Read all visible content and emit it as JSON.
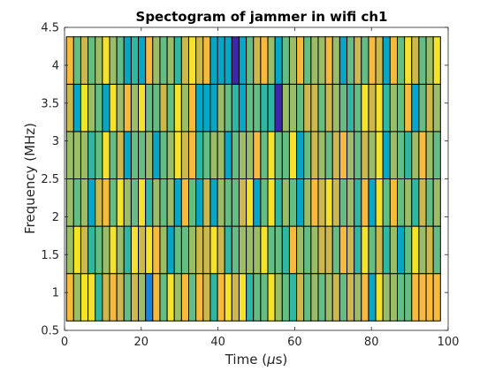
{
  "chart_data": {
    "type": "heatmap",
    "title": "Spectogram of jammer in wifi ch1",
    "xlabel_prefix": "Time (",
    "xlabel_symbol": "μ",
    "xlabel_suffix": "s)",
    "ylabel": "Frequency (MHz)",
    "xlim": [
      0,
      100
    ],
    "ylim": [
      0.5,
      4.5
    ],
    "x_ticks": [
      "0",
      "20",
      "40",
      "60",
      "80",
      "100"
    ],
    "y_ticks": [
      "0.5",
      "1",
      "1.5",
      "2",
      "2.5",
      "3",
      "3.5",
      "4",
      "4.5"
    ],
    "x_start": 0.5,
    "x_step": 1.875,
    "cols": 52,
    "y_edges": [
      0.625,
      1.25,
      1.875,
      2.5,
      3.125,
      3.75,
      4.375
    ],
    "colormap": [
      "#3E26A8",
      "#2E59F5",
      "#1387E0",
      "#06A7C6",
      "#2EB7A3",
      "#64BE84",
      "#9CBD67",
      "#CCB84C",
      "#F7BA3C",
      "#F5E22A",
      "#F9FB0E"
    ],
    "color_index_rows": [
      "8699478757628596858748979455965475656757683966558888",
      "6974569649798635567797456669554865677587495746359675",
      "6563785965946563853736557935946536879756483958564756",
      "6664595735563569784566356685955935765786576936546865",
      "7396539686955759683336543554406657757654597946583576",
      "8575696534386564797833303578635685668635758738597569"
    ]
  }
}
